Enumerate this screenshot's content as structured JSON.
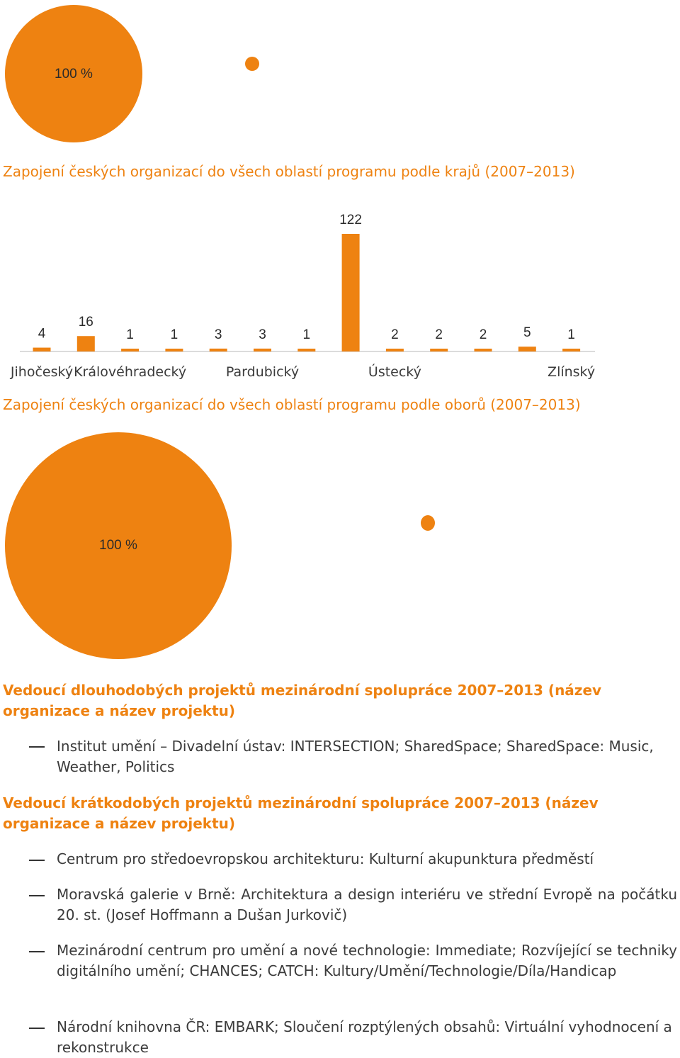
{
  "colors": {
    "accent": "#ee8211",
    "text": "#3b3b3b",
    "axis": "#555555"
  },
  "top_pie": {
    "label": "100 %"
  },
  "regions_chart": {
    "title": "Zapojení českých organizací do všech oblastí programu podle krajů (2007–2013)"
  },
  "fields_chart": {
    "title": "Zapojení českých organizací do všech oblastí programu podle oborů (2007–2013)",
    "label": "100 %"
  },
  "long_projects": {
    "heading": "Vedoucí dlouhodobých projektů mezinárodní spolupráce 2007–2013 (název organizace a název projektu)",
    "items": [
      "Institut umění – Divadelní ústav: INTERSECTION; SharedSpace; SharedSpace: Music, Weather, Politics"
    ]
  },
  "short_projects": {
    "heading": "Vedoucí krátkodobých projektů mezinárodní spolupráce 2007–2013 (název organizace a název projektu)",
    "items": [
      "Centrum pro středoevropskou architekturu: Kulturní akupunktura předměstí",
      "Moravská galerie v Brně: Architektura a design interiéru ve střední Evropě na počátku 20. st. (Josef Hoffmann a Dušan Jurkovič)",
      "Mezinárodní centrum pro umění a nové technologie: Immediate; Rozvíjející se techniky digitálního umění; CHANCES; CATCH: Kultury/Umění/Technologie/Díla/Handicap",
      "Národní knihovna ČR: EMBARK; Sloučení rozptýlených obsahů: Virtuální vyhodnocení a rekonstrukce"
    ]
  },
  "chart_data": [
    {
      "type": "pie",
      "slices": [
        {
          "label": "100 %",
          "value": 100
        }
      ]
    },
    {
      "type": "bar",
      "title": "Zapojení českých organizací do všech oblastí programu podle krajů (2007–2013)",
      "categories": [
        "Jihočeský",
        "",
        "Královéhradecký",
        "",
        "",
        "Pardubický",
        "",
        "",
        "Ústecký",
        "",
        "",
        "",
        "Zlínský"
      ],
      "values": [
        4,
        16,
        1,
        1,
        3,
        3,
        1,
        122,
        2,
        2,
        2,
        5,
        1
      ],
      "value_labels": [
        "4",
        "16",
        "1",
        "1",
        "3",
        "3",
        "1",
        "122",
        "2",
        "2",
        "2",
        "5",
        "1"
      ],
      "ylim": [
        0,
        122
      ]
    },
    {
      "type": "pie",
      "title": "Zapojení českých organizací do všech oblastí programu podle oborů (2007–2013)",
      "slices": [
        {
          "label": "100 %",
          "value": 100
        }
      ]
    }
  ]
}
